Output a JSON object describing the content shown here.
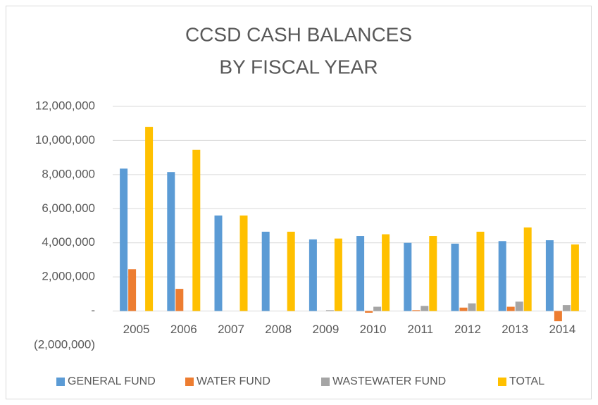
{
  "chart_data": {
    "type": "bar",
    "title": [
      "CCSD CASH BALANCES",
      "BY FISCAL YEAR"
    ],
    "categories": [
      "2005",
      "2006",
      "2007",
      "2008",
      "2009",
      "2010",
      "2011",
      "2012",
      "2013",
      "2014"
    ],
    "series": [
      {
        "name": "GENERAL FUND",
        "color": "#5b9bd5",
        "values": [
          8350000,
          8150000,
          5600000,
          4650000,
          4200000,
          4400000,
          4000000,
          3950000,
          4100000,
          4150000
        ]
      },
      {
        "name": "WATER FUND",
        "color": "#ed7d31",
        "values": [
          2450000,
          1300000,
          0,
          0,
          0,
          -100000,
          50000,
          200000,
          250000,
          -600000
        ]
      },
      {
        "name": "WASTEWATER FUND",
        "color": "#a5a5a5",
        "values": [
          0,
          0,
          0,
          0,
          50000,
          250000,
          300000,
          450000,
          550000,
          350000
        ]
      },
      {
        "name": "TOTAL",
        "color": "#ffc000",
        "values": [
          10800000,
          9450000,
          5600000,
          4650000,
          4250000,
          4500000,
          4400000,
          4650000,
          4900000,
          3900000
        ]
      }
    ],
    "ylim": [
      -2000000,
      12000000
    ],
    "yticks": [
      {
        "value": -2000000,
        "label": "(2,000,000)"
      },
      {
        "value": 0,
        "label": "-"
      },
      {
        "value": 2000000,
        "label": "2,000,000"
      },
      {
        "value": 4000000,
        "label": "4,000,000"
      },
      {
        "value": 6000000,
        "label": "6,000,000"
      },
      {
        "value": 8000000,
        "label": "8,000,000"
      },
      {
        "value": 10000000,
        "label": "10,000,000"
      },
      {
        "value": 12000000,
        "label": "12,000,000"
      }
    ],
    "grid": true,
    "legend": "bottom"
  }
}
